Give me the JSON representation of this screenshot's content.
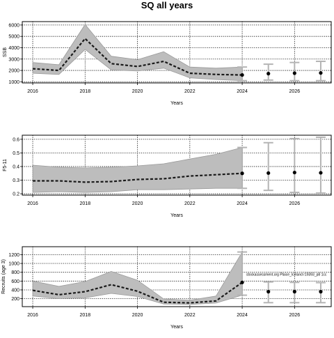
{
  "title": "SQ all years",
  "colors": {
    "band": "#bdbdbd",
    "line": "#1a1a1a",
    "projection_bar": "#b4b4b4",
    "point": "#000000"
  },
  "chart_data": [
    {
      "type": "line",
      "id": "ssb",
      "xlabel": "Years",
      "ylabel": "SSB",
      "xlim": [
        2015.6,
        2027.4
      ],
      "ylim": [
        900,
        6300
      ],
      "xticks": [
        2016,
        2018,
        2020,
        2022,
        2024,
        2026
      ],
      "yticks": [
        1000,
        2000,
        3000,
        4000,
        5000,
        6000
      ],
      "grid": true,
      "history": {
        "x": [
          2016,
          2017,
          2018,
          2019,
          2020,
          2021,
          2022,
          2023,
          2024
        ],
        "median": [
          2150,
          2000,
          4800,
          2600,
          2350,
          2800,
          1750,
          1650,
          1600
        ],
        "lower": [
          1750,
          1650,
          3850,
          2050,
          1950,
          2200,
          1350,
          1200,
          1100
        ],
        "upper": [
          2700,
          2500,
          6050,
          3250,
          2950,
          3650,
          2300,
          2200,
          2300
        ]
      },
      "projection": {
        "x": [
          2025,
          2026,
          2027
        ],
        "median": [
          1720,
          1760,
          1780
        ],
        "lower": [
          1150,
          1100,
          1100
        ],
        "upper": [
          2550,
          2700,
          2800
        ]
      }
    },
    {
      "type": "line",
      "id": "fbar",
      "xlabel": "Years",
      "ylabel": "F5-11",
      "xlim": [
        2015.6,
        2027.4
      ],
      "ylim": [
        0.19,
        0.63
      ],
      "xticks": [
        2016,
        2018,
        2020,
        2022,
        2024,
        2026
      ],
      "yticks": [
        0.2,
        0.3,
        0.4,
        0.5,
        0.6
      ],
      "grid": true,
      "history": {
        "x": [
          2016,
          2017,
          2018,
          2019,
          2020,
          2021,
          2022,
          2023,
          2024
        ],
        "median": [
          0.295,
          0.295,
          0.285,
          0.29,
          0.305,
          0.31,
          0.33,
          0.34,
          0.35
        ],
        "lower": [
          0.21,
          0.215,
          0.21,
          0.215,
          0.23,
          0.23,
          0.235,
          0.24,
          0.24
        ],
        "upper": [
          0.41,
          0.395,
          0.39,
          0.395,
          0.405,
          0.42,
          0.455,
          0.49,
          0.54
        ]
      },
      "projection": {
        "x": [
          2025,
          2026,
          2027
        ],
        "median": [
          0.352,
          0.356,
          0.354
        ],
        "lower": [
          0.225,
          0.21,
          0.205
        ],
        "upper": [
          0.575,
          0.605,
          0.615
        ]
      }
    },
    {
      "type": "line",
      "id": "recruits",
      "xlabel": "Years",
      "ylabel": "Recruits (age 3)",
      "xlim": [
        2015.6,
        2027.4
      ],
      "ylim": [
        20,
        1380
      ],
      "xticks": [
        2016,
        2018,
        2020,
        2022,
        2024,
        2026
      ],
      "yticks": [
        200,
        400,
        600,
        800,
        1000,
        1200
      ],
      "grid": true,
      "annotation": "stockassessment.org Plaice_Iceland r19393_p8 1cc",
      "history": {
        "x": [
          2016,
          2017,
          2018,
          2019,
          2020,
          2021,
          2022,
          2023,
          2024
        ],
        "median": [
          390,
          290,
          360,
          520,
          370,
          120,
          105,
          150,
          570
        ],
        "lower": [
          260,
          200,
          220,
          320,
          250,
          80,
          70,
          100,
          280
        ],
        "upper": [
          600,
          480,
          590,
          820,
          620,
          195,
          165,
          260,
          1260
        ]
      },
      "projection": {
        "x": [
          2025,
          2026,
          2027
        ],
        "median": [
          360,
          360,
          360
        ],
        "lower": [
          110,
          110,
          110
        ],
        "upper": [
          580,
          570,
          565
        ]
      }
    }
  ]
}
